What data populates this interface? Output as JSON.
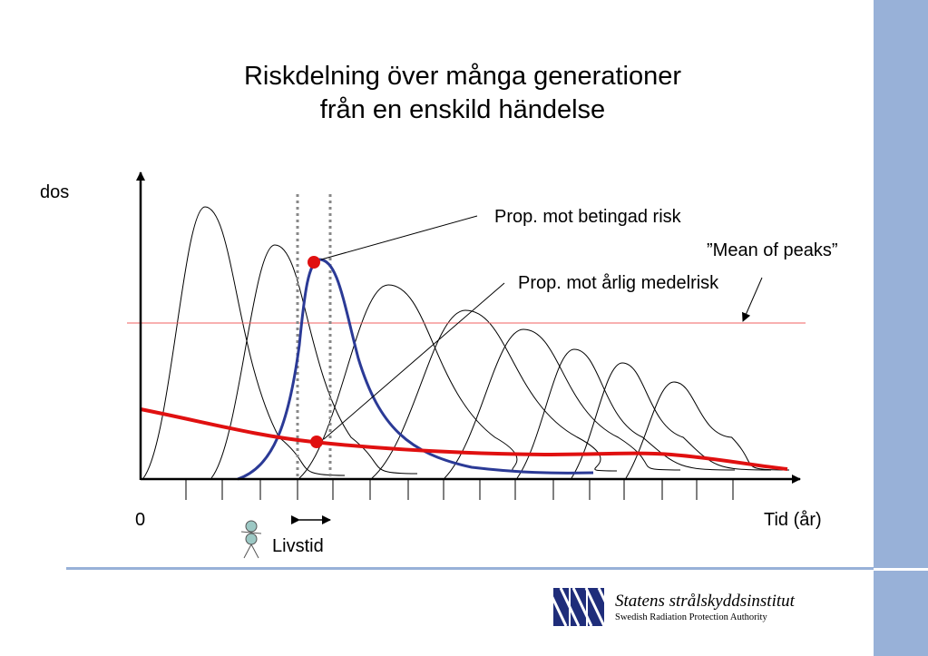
{
  "slide": {
    "title_line1": "Riskdelning över många generationer",
    "title_line2": "från en enskild händelse"
  },
  "diagram": {
    "y_axis_label": "dos",
    "x_origin_label": "0",
    "x_axis_label": "Tid (år)",
    "annotation_conditional": "Prop. mot betingad risk",
    "annotation_annual": "Prop. mot årlig medelrisk",
    "annotation_mean": "”Mean of peaks”",
    "lifetime_label": "Livstid",
    "colors": {
      "highlight_curve": "#2b3a96",
      "risk_curve": "#e01010",
      "mean_line": "#f06060",
      "marker": "#e01010",
      "dotted_lines": "#888888",
      "person_icon": "#9cc8c4"
    }
  },
  "logo": {
    "name": "Statens strålskyddsinstitut",
    "subtitle": "Swedish Radiation Protection Authority",
    "brand_color": "#1f2d7a"
  }
}
